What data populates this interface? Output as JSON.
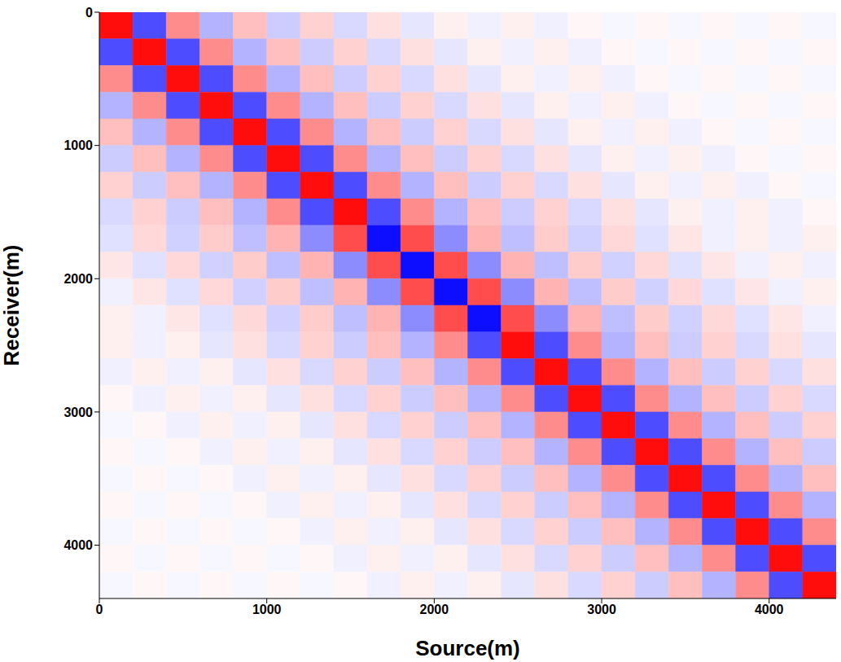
{
  "chart_data": {
    "type": "heatmap",
    "x_label": "Source(m)",
    "y_label": "Receiver(m)",
    "xlim": [
      0,
      4400
    ],
    "ylim": [
      0,
      4400
    ],
    "xticks": [
      0,
      1000,
      2000,
      3000,
      4000
    ],
    "yticks": [
      0,
      1000,
      2000,
      3000,
      4000
    ],
    "x_edges": [
      0,
      200,
      400,
      600,
      800,
      1000,
      1200,
      1400,
      1600,
      1800,
      2000,
      2200,
      2400,
      2600,
      2800,
      3000,
      3200,
      3400,
      3600,
      3800,
      4000,
      4200,
      4400
    ],
    "y_edges": [
      0,
      200,
      400,
      600,
      800,
      1000,
      1200,
      1400,
      1600,
      1800,
      2000,
      2200,
      2400,
      2600,
      2800,
      3000,
      3200,
      3400,
      3600,
      3800,
      4000,
      4200,
      4400
    ],
    "color_range": [
      -1,
      1
    ],
    "colors": [
      "#0000ff",
      "#ffffff",
      "#ff0000"
    ],
    "cells": [
      [
        0.95,
        -0.7,
        0.45,
        -0.3,
        0.25,
        -0.2,
        0.18,
        -0.15,
        0.12,
        -0.1,
        0.06,
        -0.06,
        0.06,
        -0.06,
        0.03,
        -0.03,
        0.03,
        -0.03,
        0.03,
        -0.03,
        0.03,
        -0.03
      ],
      [
        -0.7,
        0.95,
        -0.7,
        0.45,
        -0.3,
        0.25,
        -0.2,
        0.18,
        -0.15,
        0.12,
        -0.1,
        0.06,
        -0.06,
        0.06,
        -0.06,
        0.03,
        -0.03,
        0.03,
        -0.03,
        0.03,
        -0.03,
        0.03
      ],
      [
        0.45,
        -0.7,
        0.95,
        -0.7,
        0.45,
        -0.3,
        0.25,
        -0.2,
        0.18,
        -0.15,
        0.12,
        -0.1,
        0.06,
        -0.06,
        0.06,
        -0.06,
        0.03,
        -0.03,
        0.03,
        -0.03,
        0.03,
        -0.03
      ],
      [
        -0.3,
        0.45,
        -0.7,
        0.95,
        -0.7,
        0.45,
        -0.3,
        0.25,
        -0.2,
        0.18,
        -0.15,
        0.12,
        -0.1,
        0.06,
        -0.06,
        0.06,
        -0.06,
        0.03,
        -0.03,
        0.03,
        -0.03,
        0.03
      ],
      [
        0.25,
        -0.3,
        0.45,
        -0.7,
        0.95,
        -0.7,
        0.45,
        -0.3,
        0.25,
        -0.2,
        0.18,
        -0.15,
        0.12,
        -0.1,
        0.06,
        -0.06,
        0.06,
        -0.06,
        0.03,
        -0.03,
        0.03,
        -0.03
      ],
      [
        -0.2,
        0.25,
        -0.3,
        0.45,
        -0.7,
        0.95,
        -0.7,
        0.45,
        -0.3,
        0.25,
        -0.2,
        0.18,
        -0.15,
        0.12,
        -0.1,
        0.06,
        -0.06,
        0.06,
        -0.06,
        0.03,
        -0.03,
        0.03
      ],
      [
        0.18,
        -0.2,
        0.25,
        -0.3,
        0.45,
        -0.7,
        0.95,
        -0.7,
        0.45,
        -0.3,
        0.25,
        -0.2,
        0.18,
        -0.15,
        0.12,
        -0.1,
        0.06,
        -0.06,
        0.06,
        -0.06,
        0.03,
        -0.03
      ],
      [
        -0.15,
        0.18,
        -0.2,
        0.25,
        -0.3,
        0.45,
        -0.7,
        0.95,
        -0.7,
        0.45,
        -0.3,
        0.25,
        -0.2,
        0.18,
        -0.15,
        0.12,
        -0.1,
        0.06,
        -0.06,
        0.06,
        -0.06,
        0.03
      ],
      [
        -0.12,
        0.15,
        -0.18,
        0.2,
        -0.25,
        0.3,
        -0.45,
        0.7,
        -0.95,
        0.7,
        -0.45,
        0.3,
        -0.25,
        0.2,
        -0.18,
        0.15,
        -0.12,
        0.1,
        -0.06,
        0.06,
        -0.06,
        0.06
      ],
      [
        0.1,
        -0.12,
        0.15,
        -0.18,
        0.2,
        -0.25,
        0.3,
        -0.45,
        0.7,
        -0.95,
        0.7,
        -0.45,
        0.3,
        -0.25,
        0.2,
        -0.18,
        0.15,
        -0.12,
        0.1,
        -0.06,
        0.06,
        -0.06
      ],
      [
        -0.06,
        0.1,
        -0.12,
        0.15,
        -0.18,
        0.2,
        -0.25,
        0.3,
        -0.45,
        0.7,
        -0.95,
        0.7,
        -0.45,
        0.3,
        -0.25,
        0.2,
        -0.18,
        0.15,
        -0.12,
        0.1,
        -0.06,
        0.06
      ],
      [
        0.06,
        -0.06,
        0.1,
        -0.12,
        0.15,
        -0.18,
        0.2,
        -0.25,
        0.3,
        -0.45,
        0.7,
        -0.95,
        0.7,
        -0.45,
        0.3,
        -0.25,
        0.2,
        -0.18,
        0.15,
        -0.12,
        0.1,
        -0.06
      ],
      [
        0.06,
        -0.06,
        0.06,
        -0.1,
        0.12,
        -0.15,
        0.18,
        -0.2,
        0.25,
        -0.3,
        0.45,
        -0.7,
        0.95,
        -0.7,
        0.45,
        -0.3,
        0.25,
        -0.2,
        0.18,
        -0.15,
        0.12,
        -0.1
      ],
      [
        -0.06,
        0.06,
        -0.06,
        0.06,
        -0.1,
        0.12,
        -0.15,
        0.18,
        -0.2,
        0.25,
        -0.3,
        0.45,
        -0.7,
        0.95,
        -0.7,
        0.45,
        -0.3,
        0.25,
        -0.2,
        0.18,
        -0.15,
        0.12
      ],
      [
        0.03,
        -0.06,
        0.06,
        -0.06,
        0.06,
        -0.1,
        0.12,
        -0.15,
        0.18,
        -0.2,
        0.25,
        -0.3,
        0.45,
        -0.7,
        0.95,
        -0.7,
        0.45,
        -0.3,
        0.25,
        -0.2,
        0.18,
        -0.15
      ],
      [
        -0.03,
        0.03,
        -0.06,
        0.06,
        -0.06,
        0.06,
        -0.1,
        0.12,
        -0.15,
        0.18,
        -0.2,
        0.25,
        -0.3,
        0.45,
        -0.7,
        0.95,
        -0.7,
        0.45,
        -0.3,
        0.25,
        -0.2,
        0.18
      ],
      [
        0.03,
        -0.03,
        0.03,
        -0.06,
        0.06,
        -0.06,
        0.06,
        -0.1,
        0.12,
        -0.15,
        0.18,
        -0.2,
        0.25,
        -0.3,
        0.45,
        -0.7,
        0.95,
        -0.7,
        0.45,
        -0.3,
        0.25,
        -0.2
      ],
      [
        -0.03,
        0.03,
        -0.03,
        0.03,
        -0.06,
        0.06,
        -0.06,
        0.06,
        -0.1,
        0.12,
        -0.15,
        0.18,
        -0.2,
        0.25,
        -0.3,
        0.45,
        -0.7,
        0.95,
        -0.7,
        0.45,
        -0.3,
        0.25
      ],
      [
        0.03,
        -0.03,
        0.03,
        -0.03,
        0.03,
        -0.06,
        0.06,
        -0.06,
        0.06,
        -0.1,
        0.12,
        -0.15,
        0.18,
        -0.2,
        0.25,
        -0.3,
        0.45,
        -0.7,
        0.95,
        -0.7,
        0.45,
        -0.3
      ],
      [
        -0.03,
        0.03,
        -0.03,
        0.03,
        -0.03,
        0.03,
        -0.06,
        0.06,
        -0.06,
        0.06,
        -0.1,
        0.12,
        -0.15,
        0.18,
        -0.2,
        0.25,
        -0.3,
        0.45,
        -0.7,
        0.95,
        -0.7,
        0.45
      ],
      [
        0.03,
        -0.03,
        0.03,
        -0.03,
        0.03,
        -0.03,
        0.03,
        -0.06,
        0.06,
        -0.06,
        0.06,
        -0.1,
        0.12,
        -0.15,
        0.18,
        -0.2,
        0.25,
        -0.3,
        0.45,
        -0.7,
        0.95,
        -0.7
      ],
      [
        -0.03,
        0.03,
        -0.03,
        0.03,
        -0.03,
        0.03,
        -0.03,
        0.03,
        -0.06,
        0.06,
        -0.06,
        0.06,
        -0.1,
        0.12,
        -0.15,
        0.18,
        -0.2,
        0.25,
        -0.3,
        0.45,
        -0.7,
        0.95
      ]
    ]
  }
}
